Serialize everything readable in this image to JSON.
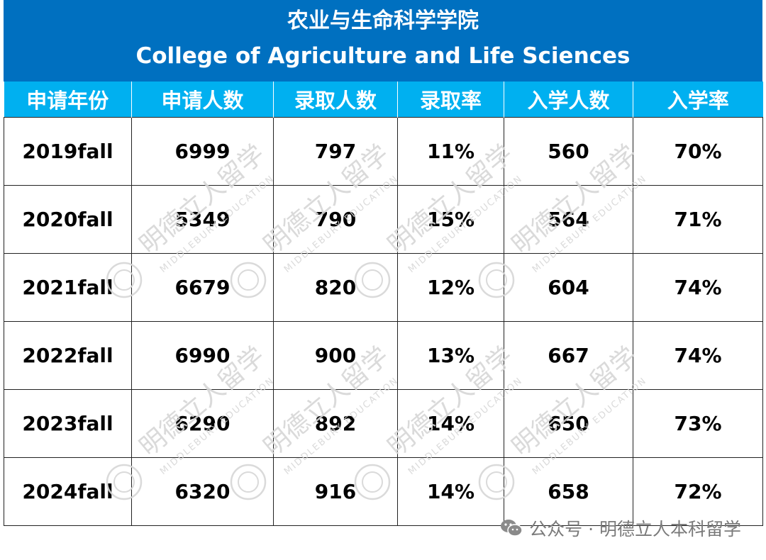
{
  "title": {
    "cn": "农业与生命科学学院",
    "en": "College of Agriculture and Life Sciences"
  },
  "table": {
    "headers": [
      "申请年份",
      "申请人数",
      "录取人数",
      "录取率",
      "入学人数",
      "入学率"
    ],
    "rows": [
      [
        "2019fall",
        "6999",
        "797",
        "11%",
        "560",
        "70%"
      ],
      [
        "2020fall",
        "5349",
        "790",
        "15%",
        "564",
        "71%"
      ],
      [
        "2021fall",
        "6679",
        "820",
        "12%",
        "604",
        "74%"
      ],
      [
        "2022fall",
        "6990",
        "900",
        "13%",
        "667",
        "74%"
      ],
      [
        "2023fall",
        "6290",
        "892",
        "14%",
        "650",
        "73%"
      ],
      [
        "2024fall",
        "6320",
        "916",
        "14%",
        "658",
        "72%"
      ]
    ]
  },
  "watermark": {
    "cn": "明德立人留学",
    "en": "MIDDLEBURY EDUCATION"
  },
  "footer": {
    "icon": "wechat-icon",
    "text": "公众号 · 明德立人本科留学"
  },
  "colors": {
    "title_bg": "#0070C0",
    "header_bg": "#00B0F0",
    "header_text": "#FFFFFF",
    "watermark": "#D6D6D6"
  }
}
